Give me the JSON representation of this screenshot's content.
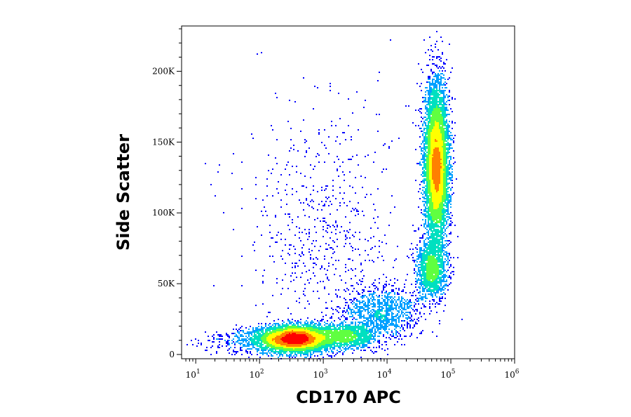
{
  "chart_data": {
    "type": "scatter",
    "style": "density dot plot (flow cytometry)",
    "title": "",
    "xlabel": "CD170 APC",
    "ylabel": "Side Scatter",
    "x_scale": "log",
    "xlim": [
      6,
      1000000
    ],
    "ylim": [
      -3000,
      232000
    ],
    "x_ticks": [
      {
        "base": "10",
        "exp": "1",
        "value": 10
      },
      {
        "base": "10",
        "exp": "2",
        "value": 100
      },
      {
        "base": "10",
        "exp": "3",
        "value": 1000
      },
      {
        "base": "10",
        "exp": "4",
        "value": 10000
      },
      {
        "base": "10",
        "exp": "5",
        "value": 100000
      },
      {
        "base": "10",
        "exp": "6",
        "value": 1000000
      }
    ],
    "y_ticks": [
      {
        "label": "0",
        "value": 0
      },
      {
        "label": "50K",
        "value": 50000
      },
      {
        "label": "100K",
        "value": 100000
      },
      {
        "label": "150K",
        "value": 150000
      },
      {
        "label": "200K",
        "value": 200000
      }
    ],
    "density_colormap": [
      "#0000ff",
      "#00a0ff",
      "#00e0c0",
      "#60ff40",
      "#ffff00",
      "#ff8000",
      "#ff0000"
    ],
    "populations": [
      {
        "x_center": 350,
        "x_sd_decades": 0.28,
        "y_center": 11000,
        "y_sd": 4500,
        "weight": 0.3
      },
      {
        "x_center": 2200,
        "x_sd_decades": 0.25,
        "y_center": 13000,
        "y_sd": 4500,
        "weight": 0.08
      },
      {
        "x_center": 60000,
        "x_sd_decades": 0.09,
        "y_center": 133000,
        "y_sd": 28000,
        "weight": 0.42
      },
      {
        "x_center": 50000,
        "x_sd_decades": 0.12,
        "y_center": 60000,
        "y_sd": 10000,
        "weight": 0.08
      },
      {
        "x_center": 8000,
        "x_sd_decades": 0.3,
        "y_center": 30000,
        "y_sd": 9000,
        "weight": 0.06
      },
      {
        "x_center": 1000,
        "x_sd_decades": 0.6,
        "y_center": 80000,
        "y_sd": 50000,
        "weight": 0.04
      },
      {
        "x_center": 80,
        "x_sd_decades": 0.4,
        "y_center": 9000,
        "y_sd": 5000,
        "weight": 0.02
      }
    ]
  }
}
